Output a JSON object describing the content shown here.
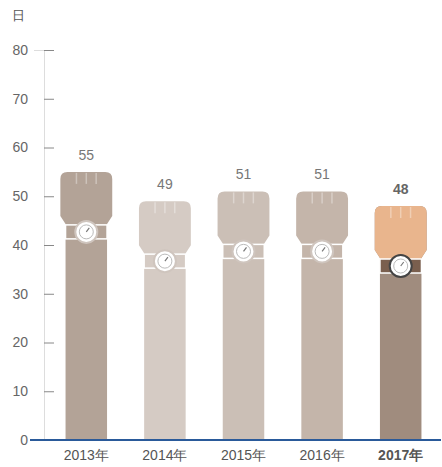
{
  "chart_data": {
    "type": "bar",
    "y_label": "日",
    "categories": [
      "2013年",
      "2014年",
      "2015年",
      "2016年",
      "2017年"
    ],
    "values": [
      55,
      49,
      51,
      51,
      48
    ],
    "colors": [
      "#b3a397",
      "#d5cbc4",
      "#cbbfb6",
      "#c4b5aa",
      "#a08c7e"
    ],
    "ylim": [
      0,
      80
    ],
    "yticks": [
      0,
      10,
      20,
      30,
      40,
      50,
      60,
      70,
      80
    ],
    "data_labels": true,
    "grid": false
  }
}
